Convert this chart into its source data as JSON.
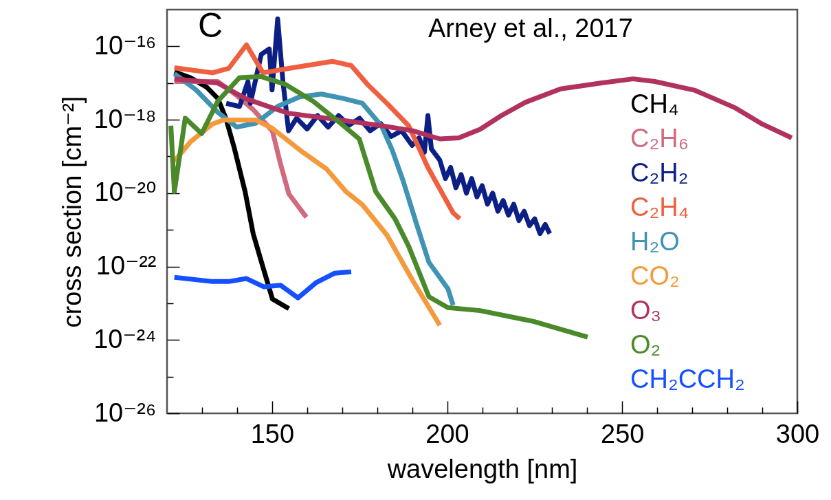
{
  "chart_data": {
    "type": "line",
    "xlabel": "wavelength [nm]",
    "ylabel": "cross section [cm⁻²]",
    "log": "y",
    "line_style": "solid",
    "legend": "right",
    "annotations": [
      "C",
      "Arney et al., 2017"
    ],
    "xlim": [
      120,
      300
    ],
    "xticks": [
      {
        "value": 130,
        "label": null
      },
      {
        "value": 140,
        "label": null
      },
      150,
      {
        "value": 160,
        "label": null
      },
      {
        "value": 170,
        "label": null
      },
      {
        "value": 180,
        "label": null
      },
      {
        "value": 190,
        "label": null
      },
      200,
      {
        "value": 210,
        "label": null
      },
      {
        "value": 220,
        "label": null
      },
      {
        "value": 230,
        "label": null
      },
      {
        "value": 240,
        "label": null
      },
      250,
      {
        "value": 260,
        "label": null
      },
      {
        "value": 270,
        "label": null
      },
      {
        "value": 280,
        "label": null
      },
      {
        "value": 290,
        "label": null
      },
      300
    ],
    "ylim": [
      1e-26,
      1e-15
    ],
    "yticks": [
      {
        "value": 1e-26,
        "label": "10⁻²⁶"
      },
      {
        "value": 1e-25,
        "label": null
      },
      {
        "value": 1e-24,
        "label": "10⁻²⁴"
      },
      {
        "value": 1e-23,
        "label": null
      },
      {
        "value": 1e-22,
        "label": "10⁻²²"
      },
      {
        "value": 1e-21,
        "label": null
      },
      {
        "value": 1e-20,
        "label": "10⁻²⁰"
      },
      {
        "value": 1e-19,
        "label": null
      },
      {
        "value": 1e-18,
        "label": "10⁻¹⁸"
      },
      {
        "value": 1e-17,
        "label": null
      },
      {
        "value": 1e-16,
        "label": "10⁻¹⁶"
      }
    ],
    "series": [
      {
        "name": "CH₄",
        "color": "#000000",
        "x": [
          122.1,
          126.7,
          131.4,
          134.5,
          136.8,
          139.2,
          140.7,
          142.3,
          144.6,
          147.0,
          150.1,
          154.8
        ],
        "values": [
          2e-17,
          1.4e-17,
          7.6e-18,
          3.8e-18,
          1.1e-18,
          1.7e-19,
          4.5e-20,
          1.1e-20,
          7.9e-22,
          1.3e-22,
          1.3e-23,
          7.1e-24
        ]
      },
      {
        "name": "C₂H₆",
        "color": "#d06a7e",
        "x": [
          122.1,
          134.5,
          139.9,
          144.6,
          150.1,
          152.4,
          154.8,
          159.8
        ],
        "values": [
          1.1e-17,
          1.1e-17,
          4.6e-18,
          1.9e-18,
          4.9e-19,
          6.3e-20,
          9.5e-21,
          2.2e-21
        ]
      },
      {
        "name": "C₂H₂",
        "color": "#0c1f85",
        "x": [
          136.9,
          140.7,
          143.1,
          143.8,
          146.9,
          149.2,
          150.0,
          151.6,
          153.1,
          154.7,
          157,
          160,
          163,
          166,
          169,
          172,
          175,
          178,
          181,
          184,
          187,
          190,
          192,
          193.5,
          194.5,
          195.5,
          197.9,
          199.5,
          201,
          202.5,
          204,
          205.5,
          207,
          208.5,
          210,
          211.5,
          213,
          214.5,
          216,
          217.5,
          219,
          220.5,
          222,
          223.5,
          225,
          226.5,
          228,
          229.3
        ],
        "values": [
          2.8e-18,
          2.3e-18,
          1.1e-17,
          2.8e-18,
          6e-17,
          8.5e-17,
          6.5e-18,
          5.6e-16,
          1.1e-17,
          5e-19,
          1.1e-18,
          5.6e-19,
          1.3e-18,
          6.3e-19,
          1.3e-18,
          7.1e-19,
          1.1e-18,
          5e-19,
          7.9e-19,
          3.5e-19,
          5e-19,
          2e-19,
          3.2e-19,
          1.3e-19,
          1.3e-18,
          1.6e-19,
          7.9e-20,
          2.5e-20,
          5e-20,
          1.4e-20,
          3.2e-20,
          1e-20,
          2.5e-20,
          7.9e-21,
          1.6e-20,
          5e-21,
          1e-20,
          3.2e-21,
          6.3e-21,
          2.5e-21,
          5e-21,
          1.8e-21,
          3.2e-21,
          1.3e-21,
          2e-21,
          7.9e-22,
          1.4e-21,
          7.9e-22
        ]
      },
      {
        "name": "C₂H₄",
        "color": "#ef6040",
        "x": [
          122.1,
          133.0,
          137.6,
          142.7,
          147.4,
          154.7,
          167.2,
          172.6,
          177.3,
          182.8,
          189.0,
          194.5,
          201.7,
          203.6
        ],
        "values": [
          2.6e-17,
          1.9e-17,
          2.5e-17,
          1.1e-16,
          1.9e-17,
          2.5e-17,
          3.9e-17,
          3e-17,
          9.1e-18,
          2.8e-18,
          6.9e-19,
          5e-20,
          2.9e-21,
          2e-21
        ]
      },
      {
        "name": "H₂O",
        "color": "#3f93b3",
        "x": [
          122.1,
          128.3,
          134.5,
          139.9,
          145.4,
          151.6,
          157.9,
          164.1,
          170.3,
          175.8,
          181.2,
          184.3,
          187.4,
          191.3,
          194.8,
          200.2,
          201.7
        ],
        "values": [
          1.8e-17,
          6.5e-18,
          1.6e-18,
          6.3e-19,
          8.1e-19,
          2.3e-18,
          4.2e-18,
          5e-18,
          3.8e-18,
          2.8e-18,
          6.9e-19,
          1.5e-19,
          2.2e-20,
          1.4e-21,
          1.3e-22,
          2.5e-23,
          8.9e-24
        ]
      },
      {
        "name": "CO₂",
        "color": "#f49a3c",
        "x": [
          122.1,
          126.7,
          132.9,
          136.1,
          145.4,
          150.1,
          157.9,
          165.6,
          171.1,
          175.8,
          182.8,
          190.2,
          197.9
        ],
        "values": [
          7.4e-20,
          2.5e-19,
          7.6e-19,
          9.8e-19,
          9.8e-19,
          5.8e-19,
          1.5e-19,
          4.5e-20,
          1.1e-20,
          4.8e-21,
          7.2e-22,
          4.1e-23,
          2.5e-24
        ]
      },
      {
        "name": "O₃",
        "color": "#b2325f",
        "x": [
          122.1,
          134.5,
          142.3,
          150.1,
          154.7,
          165.6,
          181.2,
          190.2,
          197.9,
          203.3,
          209.4,
          215.5,
          222.4,
          232.4,
          243.9,
          253.1,
          259.3,
          270.8,
          282.3,
          290.0,
          298.4
        ],
        "values": [
          1.3e-17,
          1e-17,
          3.8e-18,
          2.1e-18,
          1.5e-18,
          1.1e-18,
          6.9e-19,
          5e-19,
          3e-19,
          3.2e-19,
          5.5e-19,
          1.3e-18,
          3e-18,
          6.9e-18,
          1e-17,
          1.3e-17,
          1.1e-17,
          6.3e-18,
          2.1e-18,
          7.6e-19,
          3.2e-19
        ]
      },
      {
        "name": "O₂",
        "color": "#4a8a2a",
        "x": [
          121.1,
          122.1,
          125.2,
          129.9,
          134.5,
          140.7,
          146.9,
          153.9,
          161.7,
          169.5,
          174.9,
          179.6,
          185.1,
          189.0,
          194.8,
          200.2,
          209.4,
          224.7,
          240.1
        ],
        "values": [
          6.9e-19,
          1.1e-20,
          1.1e-18,
          4.2e-19,
          3.2e-18,
          1.4e-17,
          1.5e-17,
          9.1e-18,
          3.2e-18,
          8.1e-19,
          3e-19,
          1.1e-20,
          2e-21,
          3.6e-22,
          1.5e-23,
          7.6e-24,
          6.3e-24,
          3.2e-24,
          1.2e-24
        ]
      },
      {
        "name": "CH₂CCH₂",
        "color": "#1450ff",
        "x": [
          122.1,
          133.0,
          137.6,
          142.7,
          147.7,
          152.4,
          157.4,
          162.5,
          167.9,
          172.6
        ],
        "values": [
          5.1e-23,
          3.9e-23,
          3.9e-23,
          4.7e-23,
          2.8e-23,
          3.1e-23,
          1.4e-23,
          3.6e-23,
          6.6e-23,
          7.2e-23
        ]
      }
    ]
  }
}
